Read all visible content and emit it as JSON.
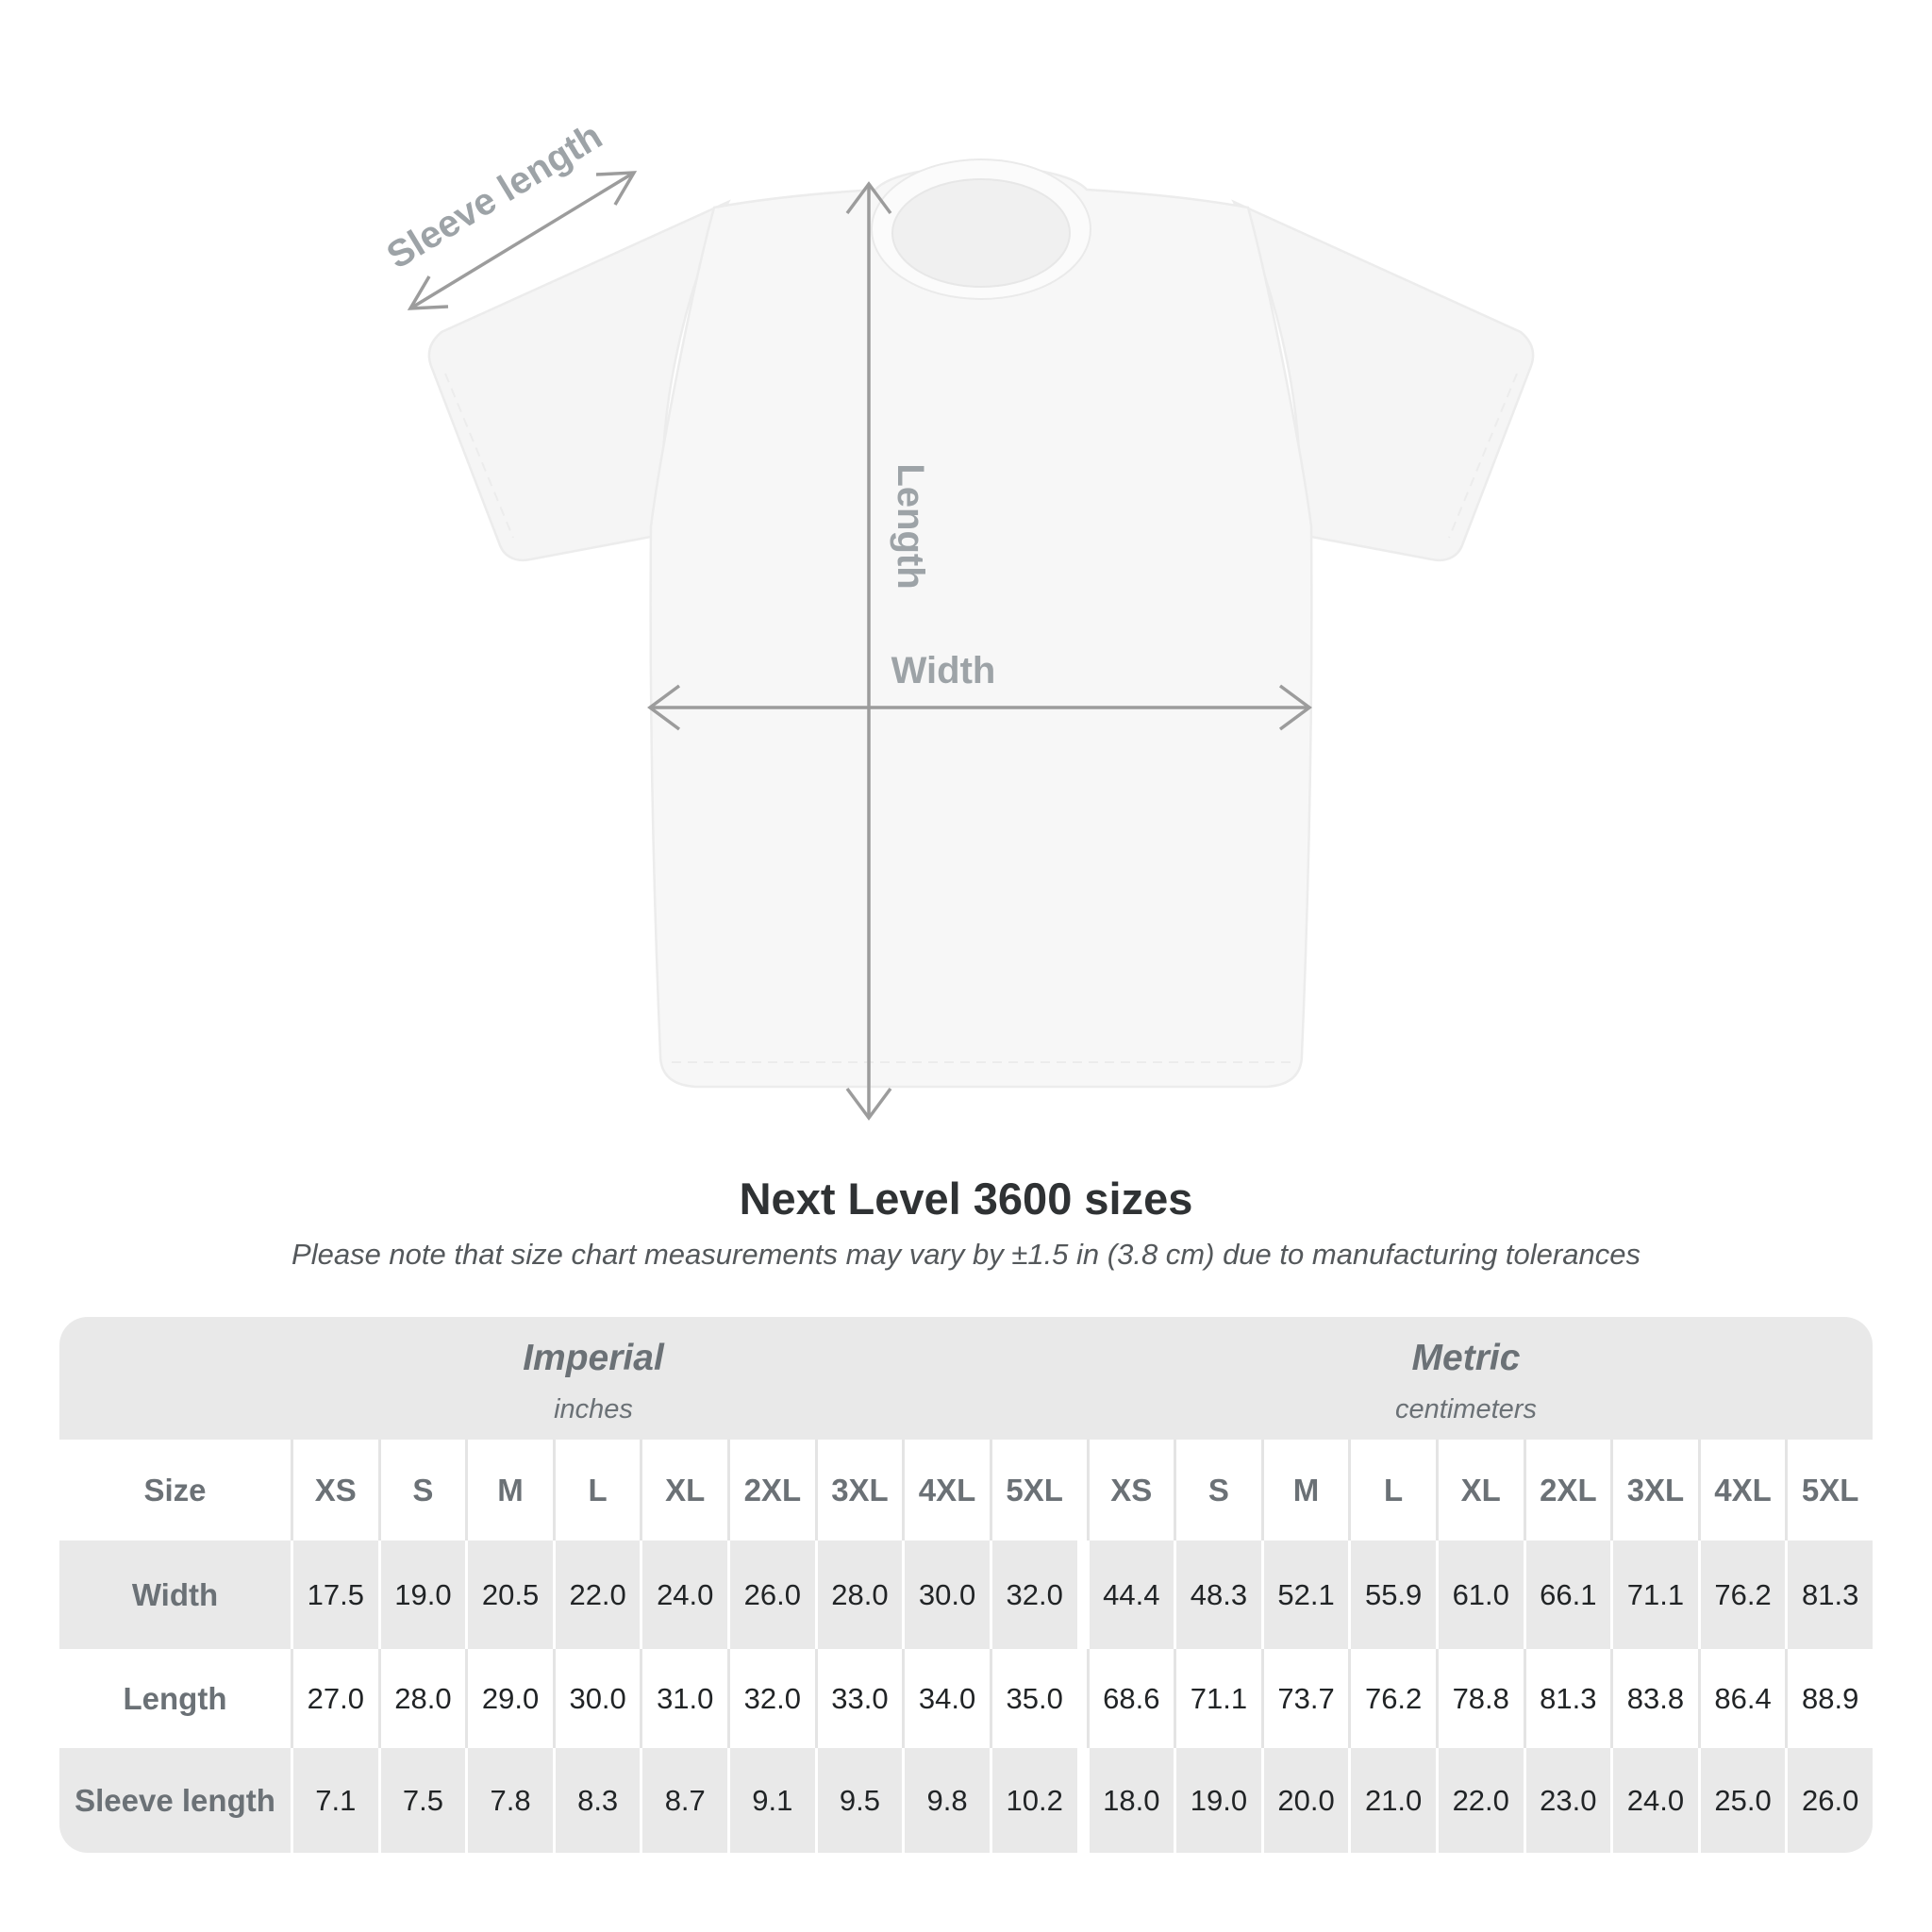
{
  "diagram": {
    "sleeve_label": "Sleeve length",
    "length_label": "Length",
    "width_label": "Width"
  },
  "title": "Next Level 3600 sizes",
  "subtitle": "Please note that size chart measurements may vary by ±1.5 in (3.8 cm) due to manufacturing tolerances",
  "table": {
    "sections": [
      {
        "name": "Imperial",
        "unit": "inches"
      },
      {
        "name": "Metric",
        "unit": "centimeters"
      }
    ],
    "size_label": "Size",
    "sizes": [
      "XS",
      "S",
      "M",
      "L",
      "XL",
      "2XL",
      "3XL",
      "4XL",
      "5XL"
    ],
    "rows": [
      {
        "label": "Width",
        "imperial": [
          "17.5",
          "19.0",
          "20.5",
          "22.0",
          "24.0",
          "26.0",
          "28.0",
          "30.0",
          "32.0"
        ],
        "metric": [
          "44.4",
          "48.3",
          "52.1",
          "55.9",
          "61.0",
          "66.1",
          "71.1",
          "76.2",
          "81.3"
        ]
      },
      {
        "label": "Length",
        "imperial": [
          "27.0",
          "28.0",
          "29.0",
          "30.0",
          "31.0",
          "32.0",
          "33.0",
          "34.0",
          "35.0"
        ],
        "metric": [
          "68.6",
          "71.1",
          "73.7",
          "76.2",
          "78.8",
          "81.3",
          "83.8",
          "86.4",
          "88.9"
        ]
      },
      {
        "label": "Sleeve length",
        "imperial": [
          "7.1",
          "7.5",
          "7.8",
          "8.3",
          "8.7",
          "9.1",
          "9.5",
          "9.8",
          "10.2"
        ],
        "metric": [
          "18.0",
          "19.0",
          "20.0",
          "21.0",
          "22.0",
          "23.0",
          "24.0",
          "25.0",
          "26.0"
        ]
      }
    ]
  },
  "colors": {
    "shade_row": "#e9e9e9",
    "header_text": "#6b7176",
    "value_text": "#212426",
    "arrow": "#9c9c9c",
    "diagram_label": "#9da3a7"
  },
  "chart_data": {
    "type": "table",
    "title": "Next Level 3600 sizes",
    "note": "Please note that size chart measurements may vary by ±1.5 in (3.8 cm) due to manufacturing tolerances",
    "sections": [
      "Imperial (inches)",
      "Metric (centimeters)"
    ],
    "sizes": [
      "XS",
      "S",
      "M",
      "L",
      "XL",
      "2XL",
      "3XL",
      "4XL",
      "5XL"
    ],
    "measurements": [
      {
        "name": "Width",
        "imperial_in": [
          17.5,
          19.0,
          20.5,
          22.0,
          24.0,
          26.0,
          28.0,
          30.0,
          32.0
        ],
        "metric_cm": [
          44.4,
          48.3,
          52.1,
          55.9,
          61.0,
          66.1,
          71.1,
          76.2,
          81.3
        ]
      },
      {
        "name": "Length",
        "imperial_in": [
          27.0,
          28.0,
          29.0,
          30.0,
          31.0,
          32.0,
          33.0,
          34.0,
          35.0
        ],
        "metric_cm": [
          68.6,
          71.1,
          73.7,
          76.2,
          78.8,
          81.3,
          83.8,
          86.4,
          88.9
        ]
      },
      {
        "name": "Sleeve length",
        "imperial_in": [
          7.1,
          7.5,
          7.8,
          8.3,
          8.7,
          9.1,
          9.5,
          9.8,
          10.2
        ],
        "metric_cm": [
          18.0,
          19.0,
          20.0,
          21.0,
          22.0,
          23.0,
          24.0,
          25.0,
          26.0
        ]
      }
    ]
  }
}
